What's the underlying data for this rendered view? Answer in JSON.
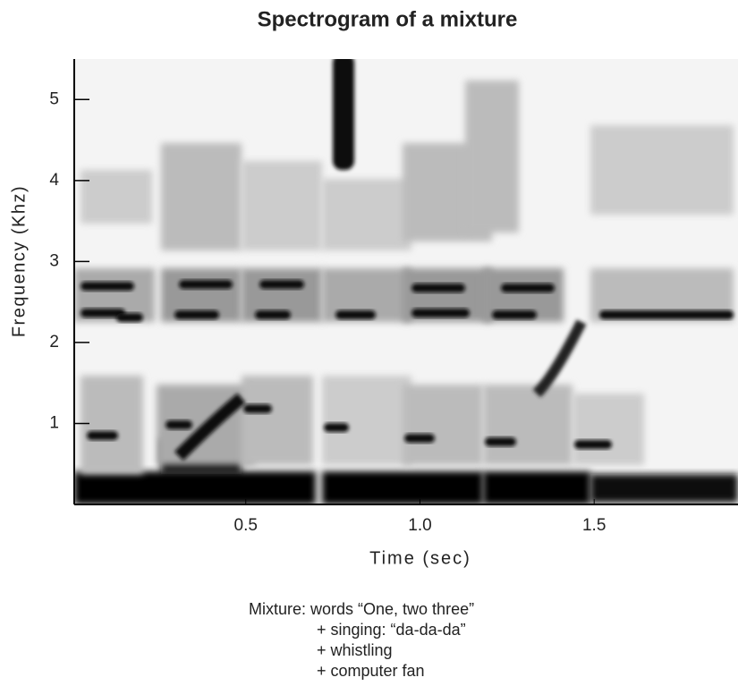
{
  "chart_data": {
    "type": "spectrogram",
    "title": "Spectrogram of a mixture",
    "x_label": "Time (sec)",
    "y_label": "Frequency (Khz)",
    "xlim": [
      0,
      1.9
    ],
    "xticks": [
      0.5,
      {
        "value": 1,
        "label": "1.0"
      },
      1.5
    ],
    "ylim": [
      0,
      5.5
    ],
    "yticks": [
      1,
      2,
      3,
      4,
      5
    ],
    "annotation": [
      "Mixture:   words  “One, two three”",
      "+ singing: “da-da-da”",
      "+ whistling",
      "+ computer fan"
    ]
  }
}
